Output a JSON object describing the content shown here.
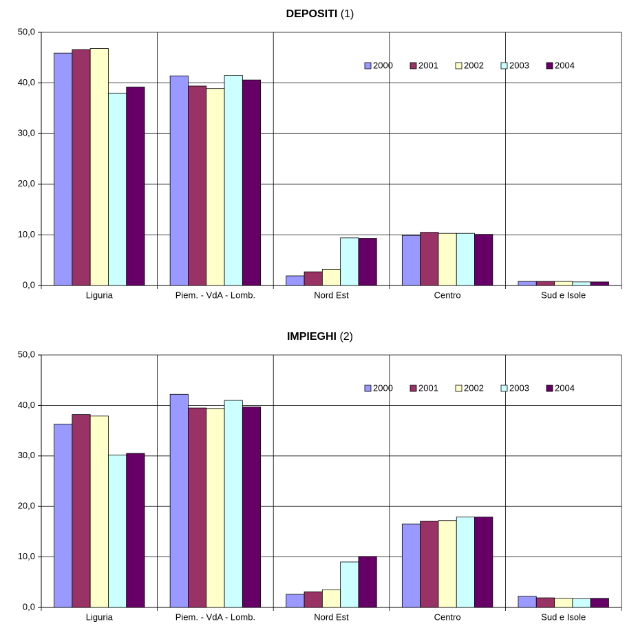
{
  "chart_data": [
    {
      "type": "bar",
      "title": "DEPOSITI",
      "subtitle": "(1)",
      "categories": [
        "Liguria",
        "Piem. - VdA - Lomb.",
        "Nord Est",
        "Centro",
        "Sud e Isole"
      ],
      "series": [
        {
          "name": "2000",
          "color": "#9999ff",
          "values": [
            45.9,
            41.4,
            1.9,
            9.9,
            0.8
          ]
        },
        {
          "name": "2001",
          "color": "#993366",
          "values": [
            46.6,
            39.4,
            2.7,
            10.5,
            0.8
          ]
        },
        {
          "name": "2002",
          "color": "#ffffcc",
          "values": [
            46.8,
            38.9,
            3.2,
            10.3,
            0.8
          ]
        },
        {
          "name": "2003",
          "color": "#ccffff",
          "values": [
            38.0,
            41.5,
            9.4,
            10.3,
            0.7
          ]
        },
        {
          "name": "2004",
          "color": "#660066",
          "values": [
            39.2,
            40.6,
            9.3,
            10.1,
            0.7
          ]
        }
      ],
      "ylim": [
        0,
        50
      ],
      "yticks": [
        {
          "value": 0,
          "label": "0,0"
        },
        {
          "value": 10,
          "label": "10,0"
        },
        {
          "value": 20,
          "label": "20,0"
        },
        {
          "value": 30,
          "label": "30,0"
        },
        {
          "value": 40,
          "label": "40,0"
        },
        {
          "value": 50,
          "label": "50,0"
        }
      ],
      "grid": true,
      "legend": "top-right"
    },
    {
      "type": "bar",
      "title": "IMPIEGHI",
      "subtitle": "(2)",
      "categories": [
        "Liguria",
        "Piem. - VdA - Lomb.",
        "Nord Est",
        "Centro",
        "Sud e Isole"
      ],
      "series": [
        {
          "name": "2000",
          "color": "#9999ff",
          "values": [
            36.3,
            42.2,
            2.6,
            16.5,
            2.2
          ]
        },
        {
          "name": "2001",
          "color": "#993366",
          "values": [
            38.2,
            39.5,
            3.1,
            17.1,
            1.9
          ]
        },
        {
          "name": "2002",
          "color": "#ffffcc",
          "values": [
            37.9,
            39.4,
            3.5,
            17.2,
            1.8
          ]
        },
        {
          "name": "2003",
          "color": "#ccffff",
          "values": [
            30.2,
            41.0,
            9.0,
            17.9,
            1.7
          ]
        },
        {
          "name": "2004",
          "color": "#660066",
          "values": [
            30.5,
            39.7,
            10.1,
            17.9,
            1.8
          ]
        }
      ],
      "ylim": [
        0,
        50
      ],
      "yticks": [
        {
          "value": 0,
          "label": "0,0"
        },
        {
          "value": 10,
          "label": "10,0"
        },
        {
          "value": 20,
          "label": "20,0"
        },
        {
          "value": 30,
          "label": "30,0"
        },
        {
          "value": 40,
          "label": "40,0"
        },
        {
          "value": 50,
          "label": "50,0"
        }
      ],
      "grid": true,
      "legend": "top-right"
    }
  ]
}
